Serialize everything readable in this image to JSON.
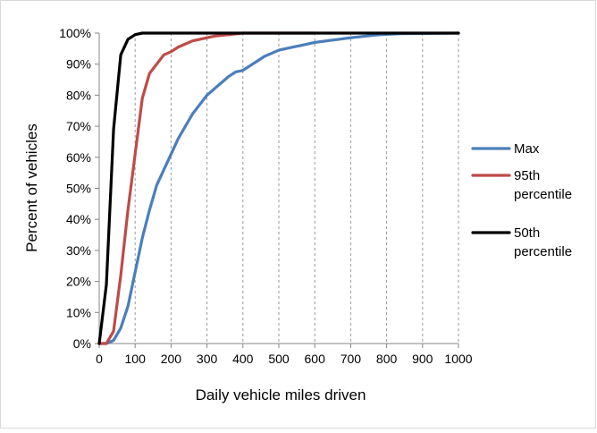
{
  "chart_data": {
    "type": "line",
    "title": "",
    "xlabel": "Daily vehicle miles driven",
    "ylabel": "Percent of vehicles",
    "xlim": [
      0,
      1000
    ],
    "ylim": [
      0,
      100
    ],
    "x_ticks": [
      "0",
      "100",
      "200",
      "300",
      "400",
      "500",
      "600",
      "700",
      "800",
      "900",
      "1000"
    ],
    "y_ticks": [
      "0%",
      "10%",
      "20%",
      "30%",
      "40%",
      "50%",
      "60%",
      "70%",
      "80%",
      "90%",
      "100%"
    ],
    "x_tick_values": [
      0,
      100,
      200,
      300,
      400,
      500,
      600,
      700,
      800,
      900,
      1000
    ],
    "y_tick_values": [
      0,
      10,
      20,
      30,
      40,
      50,
      60,
      70,
      80,
      90,
      100
    ],
    "grid": "vertical dashed",
    "legend_position": "right",
    "series": [
      {
        "name": "Max",
        "color": "#4a7ebb",
        "points": [
          [
            0,
            0
          ],
          [
            20,
            0
          ],
          [
            40,
            1
          ],
          [
            60,
            5
          ],
          [
            80,
            12
          ],
          [
            100,
            23
          ],
          [
            120,
            34
          ],
          [
            140,
            43
          ],
          [
            160,
            51
          ],
          [
            180,
            56
          ],
          [
            200,
            61
          ],
          [
            220,
            66
          ],
          [
            240,
            70
          ],
          [
            260,
            74
          ],
          [
            280,
            77
          ],
          [
            300,
            80
          ],
          [
            320,
            82
          ],
          [
            340,
            84
          ],
          [
            360,
            86
          ],
          [
            380,
            87.5
          ],
          [
            400,
            88
          ],
          [
            420,
            89.5
          ],
          [
            440,
            91
          ],
          [
            460,
            92.5
          ],
          [
            480,
            93.5
          ],
          [
            500,
            94.5
          ],
          [
            520,
            95
          ],
          [
            540,
            95.5
          ],
          [
            560,
            96
          ],
          [
            580,
            96.5
          ],
          [
            600,
            97
          ],
          [
            620,
            97.3
          ],
          [
            640,
            97.6
          ],
          [
            660,
            97.9
          ],
          [
            680,
            98.2
          ],
          [
            700,
            98.5
          ],
          [
            740,
            99
          ],
          [
            780,
            99.5
          ],
          [
            840,
            99.8
          ],
          [
            1000,
            100
          ]
        ]
      },
      {
        "name": "95th percentile",
        "color": "#be4b48",
        "points": [
          [
            0,
            0
          ],
          [
            20,
            0
          ],
          [
            40,
            4
          ],
          [
            60,
            22
          ],
          [
            80,
            43
          ],
          [
            100,
            61
          ],
          [
            120,
            79
          ],
          [
            140,
            87
          ],
          [
            160,
            90
          ],
          [
            180,
            93
          ],
          [
            200,
            94
          ],
          [
            220,
            95.5
          ],
          [
            240,
            96.5
          ],
          [
            260,
            97.5
          ],
          [
            280,
            98
          ],
          [
            300,
            98.5
          ],
          [
            320,
            99
          ],
          [
            360,
            99.5
          ],
          [
            400,
            100
          ],
          [
            600,
            100
          ]
        ]
      },
      {
        "name": "50th percentile",
        "color": "#000000",
        "points": [
          [
            0,
            0
          ],
          [
            20,
            19
          ],
          [
            40,
            69
          ],
          [
            60,
            93
          ],
          [
            80,
            98
          ],
          [
            100,
            99.5
          ],
          [
            120,
            100
          ],
          [
            1000,
            100
          ]
        ]
      }
    ],
    "legend": [
      {
        "label_lines": [
          "Max"
        ],
        "color": "#4a7ebb"
      },
      {
        "label_lines": [
          "95th",
          "percentile"
        ],
        "color": "#be4b48"
      },
      {
        "label_lines": [
          "50th",
          "percentile"
        ],
        "color": "#000000"
      }
    ]
  }
}
